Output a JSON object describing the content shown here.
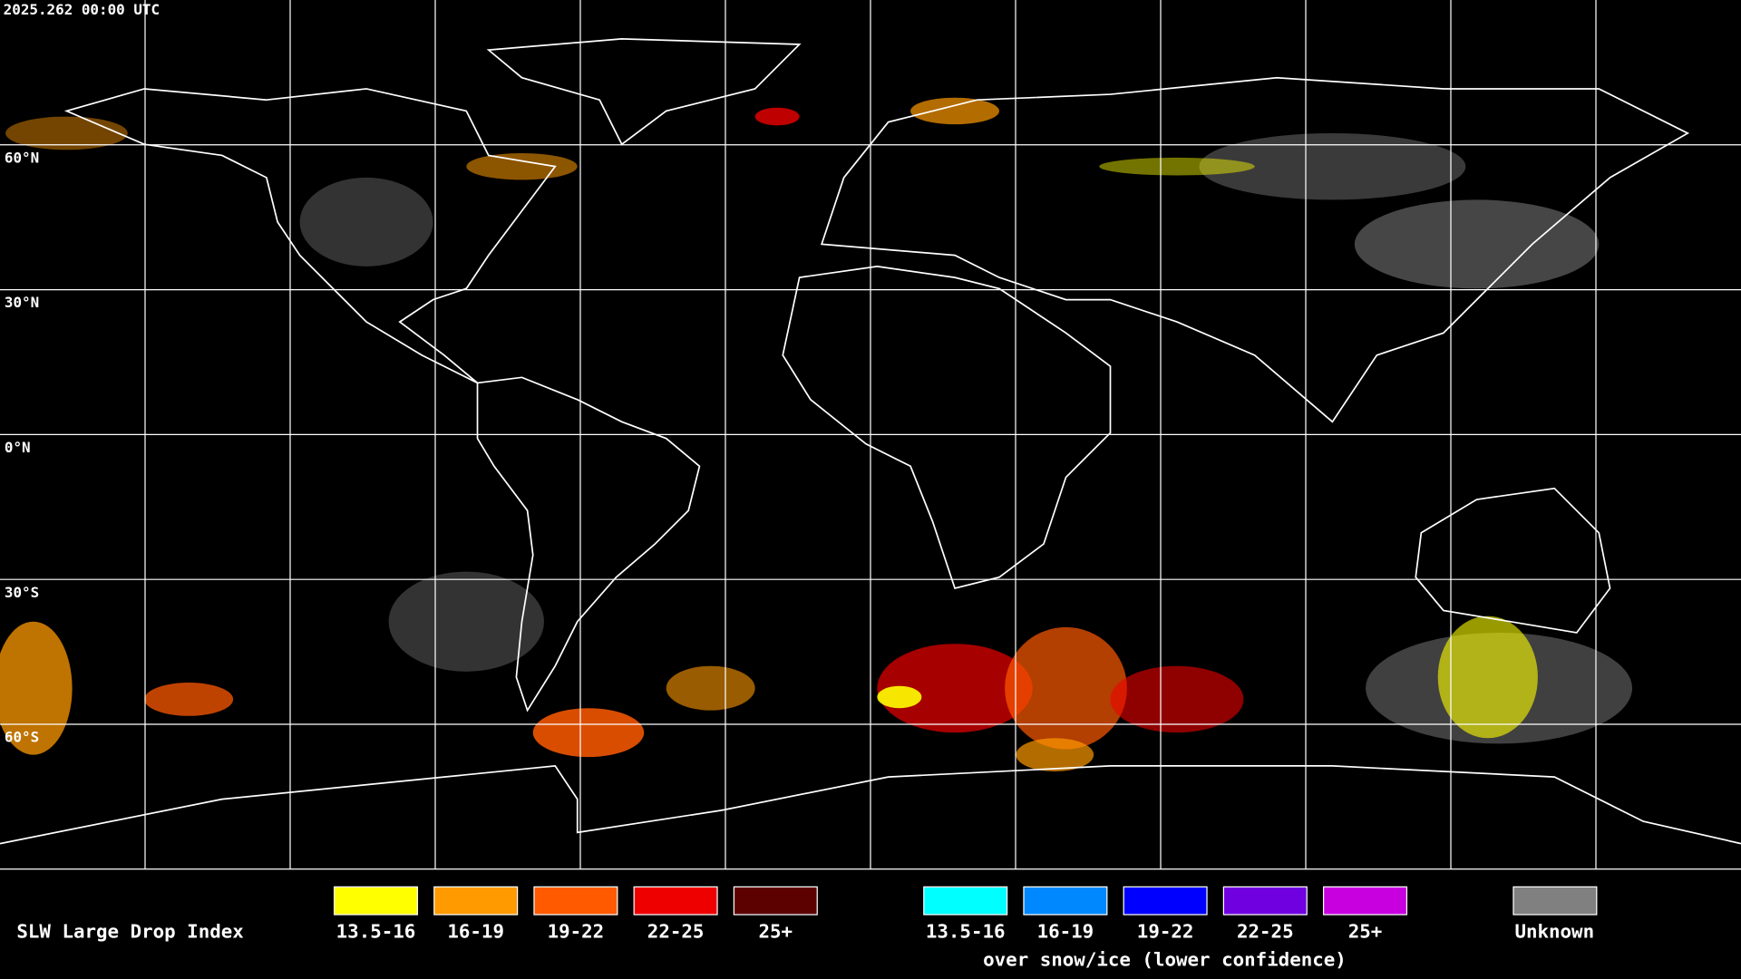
{
  "header": {
    "timestamp": "2025.262 00:00 UTC"
  },
  "map": {
    "latitude_labels": [
      "60°N",
      "30°N",
      "0°N",
      "30°S",
      "60°S"
    ]
  },
  "legend": {
    "title": "SLW Large Drop Index",
    "groups": [
      {
        "items": [
          {
            "label": "13.5-16",
            "color": "#ffff00"
          },
          {
            "label": "16-19",
            "color": "#ff9a00"
          },
          {
            "label": "19-22",
            "color": "#ff5a00"
          },
          {
            "label": "22-25",
            "color": "#ee0000"
          },
          {
            "label": "25+",
            "color": "#5c0000"
          }
        ]
      },
      {
        "items": [
          {
            "label": "13.5-16",
            "color": "#00ffff"
          },
          {
            "label": "16-19",
            "color": "#0088ff"
          },
          {
            "label": "19-22",
            "color": "#0000ff"
          },
          {
            "label": "22-25",
            "color": "#7000e0"
          },
          {
            "label": "25+",
            "color": "#c800e0"
          }
        ],
        "caption": "over snow/ice (lower confidence)"
      }
    ],
    "unknown": {
      "label": "Unknown",
      "color": "#808080"
    }
  }
}
